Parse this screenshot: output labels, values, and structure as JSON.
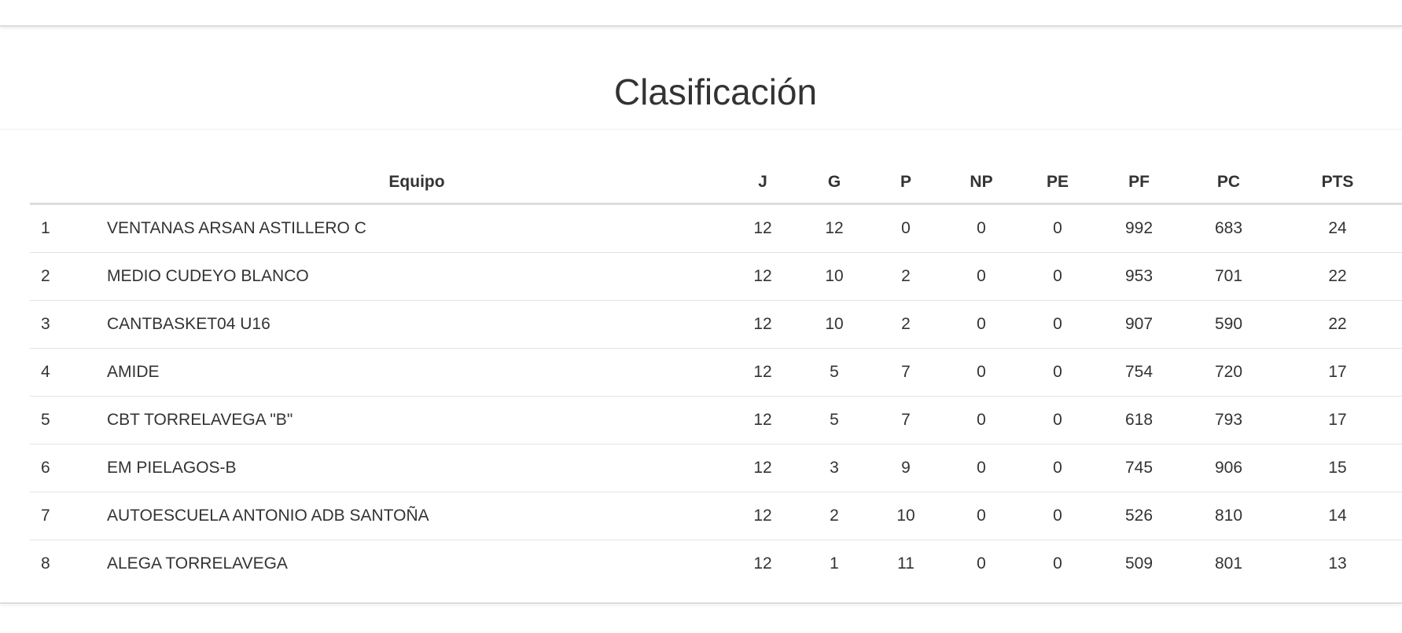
{
  "title": "Clasificación",
  "table": {
    "headers": [
      "",
      "Equipo",
      "J",
      "G",
      "P",
      "NP",
      "PE",
      "PF",
      "PC",
      "PTS"
    ],
    "rows": [
      [
        "1",
        "VENTANAS ARSAN ASTILLERO C",
        "12",
        "12",
        "0",
        "0",
        "0",
        "992",
        "683",
        "24"
      ],
      [
        "2",
        "MEDIO CUDEYO BLANCO",
        "12",
        "10",
        "2",
        "0",
        "0",
        "953",
        "701",
        "22"
      ],
      [
        "3",
        "CANTBASKET04 U16",
        "12",
        "10",
        "2",
        "0",
        "0",
        "907",
        "590",
        "22"
      ],
      [
        "4",
        "AMIDE",
        "12",
        "5",
        "7",
        "0",
        "0",
        "754",
        "720",
        "17"
      ],
      [
        "5",
        "CBT TORRELAVEGA \"B\"",
        "12",
        "5",
        "7",
        "0",
        "0",
        "618",
        "793",
        "17"
      ],
      [
        "6",
        "EM PIELAGOS-B",
        "12",
        "3",
        "9",
        "0",
        "0",
        "745",
        "906",
        "15"
      ],
      [
        "7",
        "AUTOESCUELA ANTONIO ADB SANTOÑA",
        "12",
        "2",
        "10",
        "0",
        "0",
        "526",
        "810",
        "14"
      ],
      [
        "8",
        "ALEGA TORRELAVEGA",
        "12",
        "1",
        "11",
        "0",
        "0",
        "509",
        "801",
        "13"
      ]
    ]
  }
}
